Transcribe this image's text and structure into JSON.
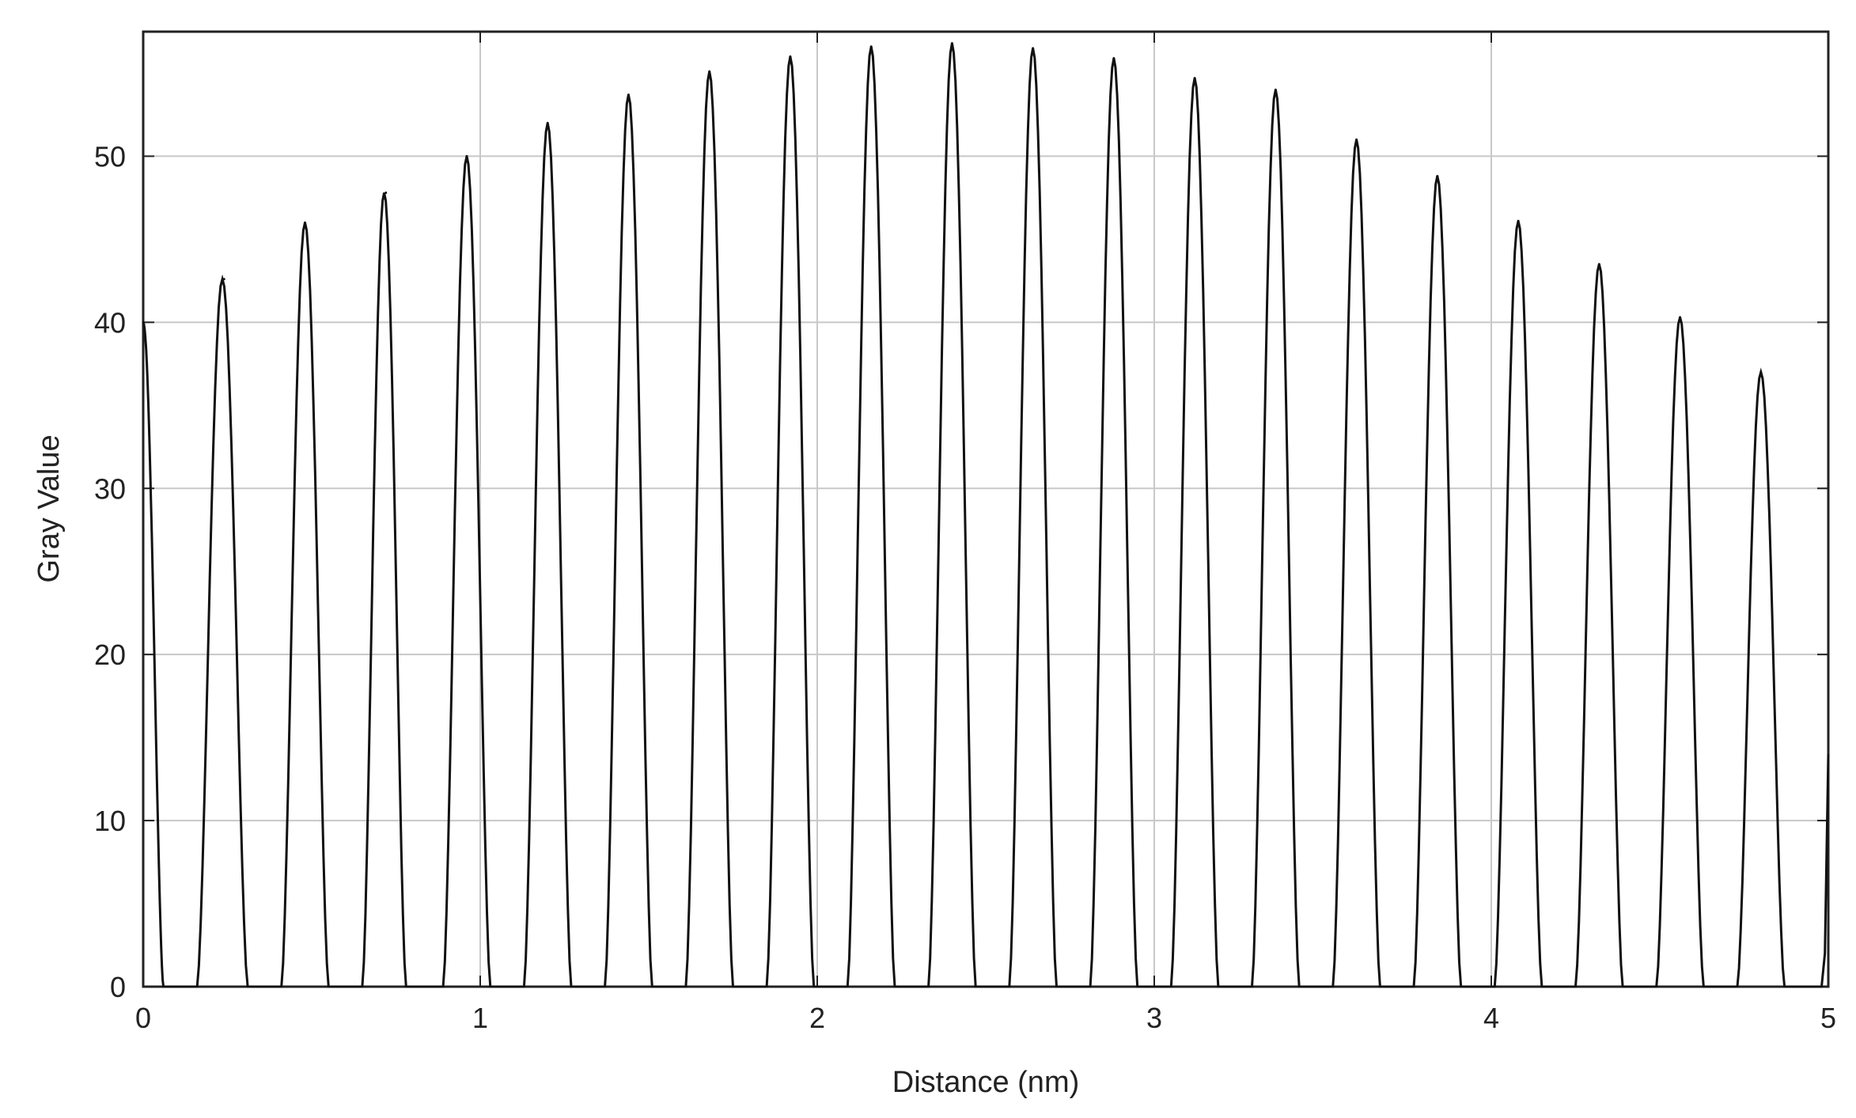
{
  "chart_data": {
    "type": "line",
    "title": "",
    "xlabel": "Distance (nm)",
    "ylabel": "Gray Value",
    "xlim": [
      0,
      5
    ],
    "ylim": [
      0,
      57.5
    ],
    "x_ticks": [
      "0",
      "1",
      "2",
      "3",
      "4",
      "5"
    ],
    "y_ticks": [
      "0",
      "10",
      "20",
      "30",
      "40",
      "50"
    ],
    "grid": true,
    "legend": "none",
    "line_color": "#111111",
    "grid_color": "#c8c8c8",
    "series": [
      {
        "peaks": [
          {
            "x": 0.0,
            "y": 40.0,
            "x_start": 0.0,
            "x_end": 0.06
          },
          {
            "x": 0.24,
            "y": 42.6,
            "x_start": 0.16,
            "x_end": 0.31
          },
          {
            "x": 0.48,
            "y": 46.0,
            "x_start": 0.41,
            "x_end": 0.55
          },
          {
            "x": 0.72,
            "y": 47.8,
            "x_start": 0.65,
            "x_end": 0.78
          },
          {
            "x": 0.96,
            "y": 50.0,
            "x_start": 0.89,
            "x_end": 1.03
          },
          {
            "x": 1.2,
            "y": 52.0,
            "x_start": 1.13,
            "x_end": 1.27
          },
          {
            "x": 1.44,
            "y": 53.7,
            "x_start": 1.37,
            "x_end": 1.51
          },
          {
            "x": 1.68,
            "y": 55.1,
            "x_start": 1.61,
            "x_end": 1.75
          },
          {
            "x": 1.92,
            "y": 56.0,
            "x_start": 1.85,
            "x_end": 1.99
          },
          {
            "x": 2.16,
            "y": 56.6,
            "x_start": 2.09,
            "x_end": 2.23
          },
          {
            "x": 2.4,
            "y": 56.8,
            "x_start": 2.33,
            "x_end": 2.47
          },
          {
            "x": 2.64,
            "y": 56.5,
            "x_start": 2.57,
            "x_end": 2.71
          },
          {
            "x": 2.88,
            "y": 55.9,
            "x_start": 2.81,
            "x_end": 2.95
          },
          {
            "x": 3.12,
            "y": 54.7,
            "x_start": 3.05,
            "x_end": 3.19
          },
          {
            "x": 3.36,
            "y": 54.0,
            "x_start": 3.29,
            "x_end": 3.43
          },
          {
            "x": 3.6,
            "y": 51.0,
            "x_start": 3.53,
            "x_end": 3.67
          },
          {
            "x": 3.84,
            "y": 48.8,
            "x_start": 3.77,
            "x_end": 3.91
          },
          {
            "x": 4.08,
            "y": 46.1,
            "x_start": 4.01,
            "x_end": 4.15
          },
          {
            "x": 4.32,
            "y": 43.5,
            "x_start": 4.25,
            "x_end": 4.39
          },
          {
            "x": 4.56,
            "y": 40.3,
            "x_start": 4.49,
            "x_end": 4.63
          },
          {
            "x": 4.8,
            "y": 37.0,
            "x_start": 4.73,
            "x_end": 4.87
          }
        ],
        "tail": {
          "x": 5.0,
          "y": 14.0
        }
      }
    ]
  }
}
